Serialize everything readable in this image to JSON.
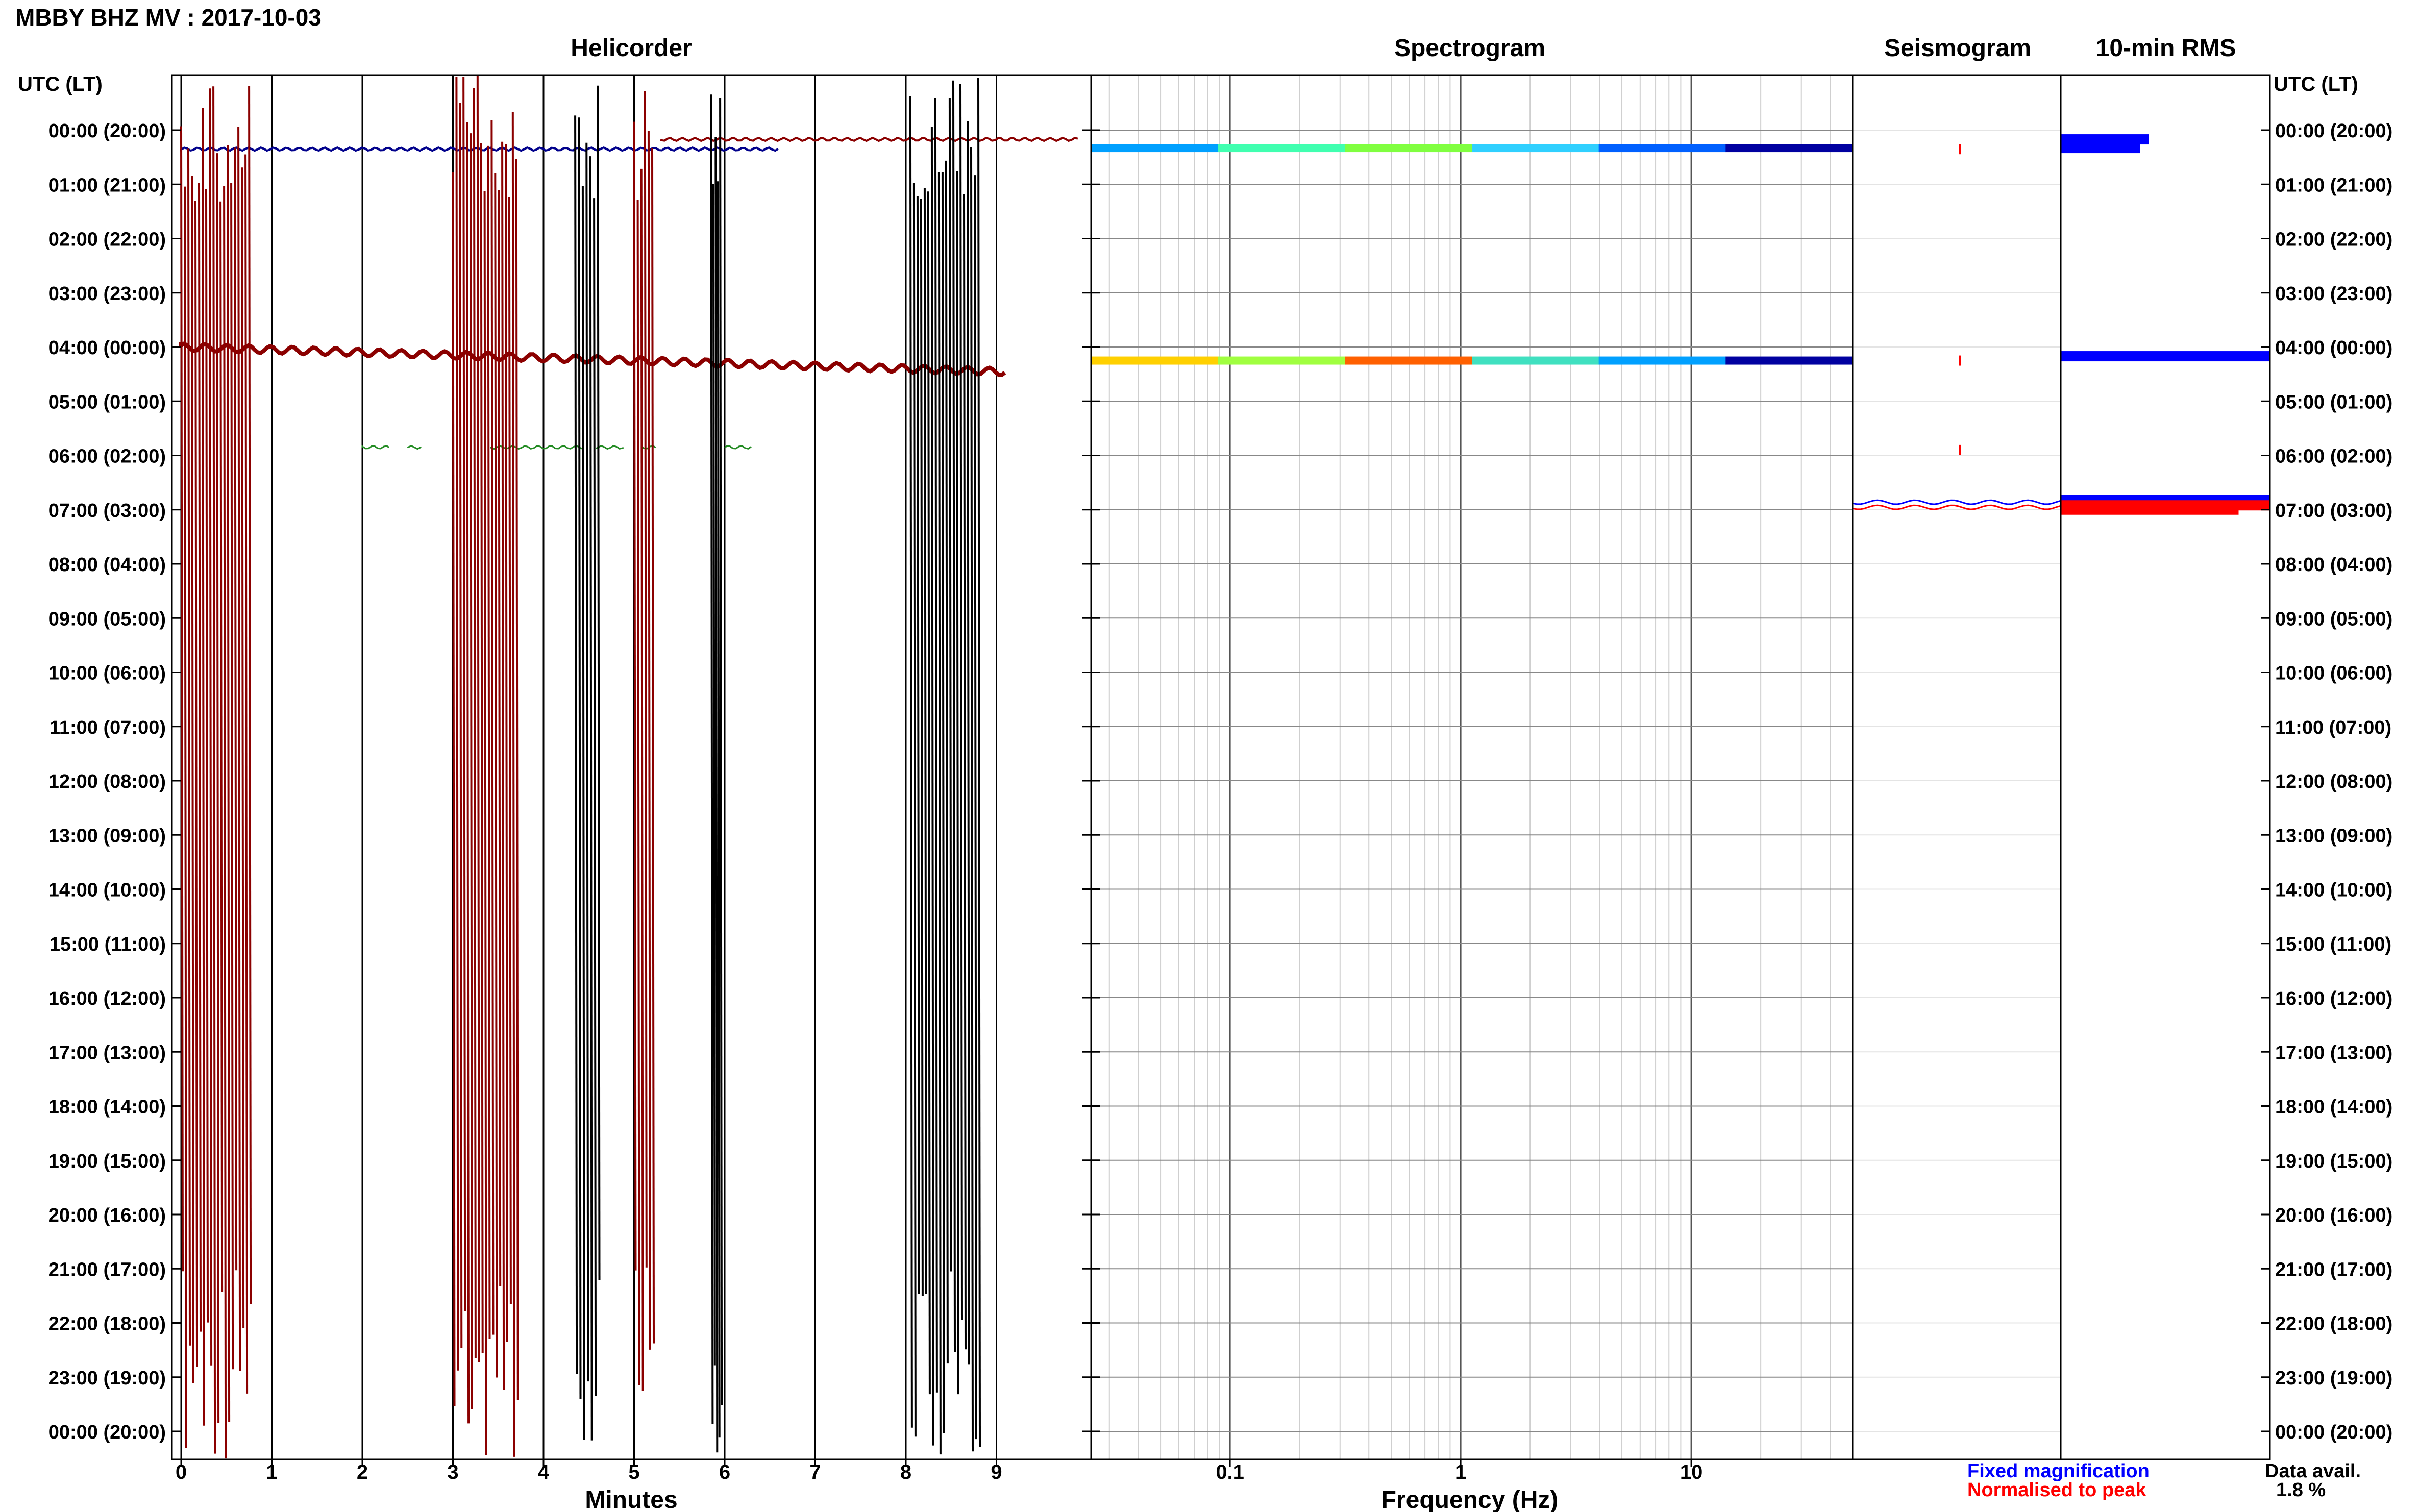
{
  "header": {
    "title": "MBBY BHZ MV : 2017-10-03"
  },
  "panels": {
    "helicorder": {
      "title": "Helicorder",
      "xlabel": "Minutes"
    },
    "spectrogram": {
      "title": "Spectrogram",
      "xlabel": "Frequency (Hz)"
    },
    "seismogram": {
      "title": "Seismogram"
    },
    "rms": {
      "title": "10-min RMS"
    }
  },
  "axis": {
    "left_label": "UTC (LT)",
    "right_label": "UTC (LT)",
    "hour_labels": [
      "00:00 (20:00)",
      "01:00 (21:00)",
      "02:00 (22:00)",
      "03:00 (23:00)",
      "04:00 (00:00)",
      "05:00 (01:00)",
      "06:00 (02:00)",
      "07:00 (03:00)",
      "08:00 (04:00)",
      "09:00 (05:00)",
      "10:00 (06:00)",
      "11:00 (07:00)",
      "12:00 (08:00)",
      "13:00 (09:00)",
      "14:00 (10:00)",
      "15:00 (11:00)",
      "16:00 (12:00)",
      "17:00 (13:00)",
      "18:00 (14:00)",
      "19:00 (15:00)",
      "20:00 (16:00)",
      "21:00 (17:00)",
      "22:00 (18:00)",
      "23:00 (19:00)",
      "00:00 (20:00)"
    ],
    "minute_ticks": [
      "0",
      "1",
      "2",
      "3",
      "4",
      "5",
      "6",
      "7",
      "8",
      "9"
    ],
    "freq_ticks": [
      "0.1",
      "1",
      "10"
    ]
  },
  "legend": {
    "fixed": "Fixed magnification",
    "normalised": "Normalised to peak",
    "fixed_color": "#0000ff",
    "normalised_color": "#ff0000"
  },
  "availability": {
    "label": "Data avail.",
    "value": "1.8 %"
  },
  "chart_data": [
    {
      "type": "line",
      "name": "helicorder",
      "title": "Helicorder",
      "xlabel": "Minutes",
      "xlim": [
        0,
        10
      ],
      "x_ticks": [
        0,
        1,
        2,
        3,
        4,
        5,
        6,
        7,
        8,
        9
      ],
      "ylim_hours": [
        0,
        24
      ],
      "traces": [
        {
          "hour": 0.35,
          "color": "#00008b",
          "x_start": 0.0,
          "x_end": 6.6
        },
        {
          "hour": 0.17,
          "color": "#8b0000",
          "x_start": 5.3,
          "x_end": 9.9
        },
        {
          "hour": 4.0,
          "color": "#8b0000",
          "x_start": 0.0,
          "x_end": 9.1
        },
        {
          "hour": 5.85,
          "color": "#228b22",
          "x_start": 2.0,
          "x_end": 6.3
        }
      ],
      "spikes": [
        {
          "color": "#8b0000",
          "x_range": [
            0.0,
            0.75
          ],
          "hours": [
            0,
            24
          ]
        },
        {
          "color": "#8b0000",
          "x_range": [
            3.0,
            3.7
          ],
          "hours": [
            0,
            24
          ]
        },
        {
          "color": "#8b0000",
          "x_range": [
            5.0,
            5.2
          ],
          "hours": [
            0,
            24
          ]
        },
        {
          "color": "#000000",
          "x_range": [
            4.35,
            4.6
          ],
          "hours": [
            0,
            24
          ]
        },
        {
          "color": "#000000",
          "x_range": [
            5.85,
            5.95
          ],
          "hours": [
            0,
            24
          ]
        },
        {
          "color": "#000000",
          "x_range": [
            8.05,
            8.8
          ],
          "hours": [
            0,
            24
          ]
        }
      ]
    },
    {
      "type": "heatmap",
      "name": "spectrogram",
      "title": "Spectrogram",
      "xlabel": "Frequency (Hz)",
      "xscale": "log",
      "xlim": [
        0.025,
        50
      ],
      "x_ticks": [
        0.1,
        1,
        10
      ],
      "bands": [
        {
          "hour": 0.33,
          "colors": [
            "#00a0ff",
            "#40ffb0",
            "#80ff40",
            "#30d0ff",
            "#0060ff",
            "#0000a0"
          ]
        },
        {
          "hour": 4.25,
          "colors": [
            "#ffd000",
            "#a0ff40",
            "#ff6000",
            "#40e0c0",
            "#00a0ff",
            "#0000a0"
          ]
        }
      ]
    },
    {
      "type": "line",
      "name": "seismogram",
      "title": "Seismogram",
      "segments": [
        {
          "hour": 0.35,
          "color": "#ff0000"
        },
        {
          "hour": 4.25,
          "color": "#ff0000"
        },
        {
          "hour": 5.9,
          "color": "#ff0000"
        },
        {
          "hour": 6.9,
          "color": "#0000ff"
        },
        {
          "hour": 6.9,
          "color": "#ff0000"
        }
      ]
    },
    {
      "type": "bar",
      "name": "rms",
      "title": "10-min RMS",
      "orientation": "horizontal",
      "xlim": [
        0,
        1
      ],
      "series": [
        {
          "color": "#0000ff",
          "bars": [
            {
              "hour": 0.17,
              "value": 0.42
            },
            {
              "hour": 0.33,
              "value": 0.38
            },
            {
              "hour": 4.17,
              "value": 1.0
            },
            {
              "hour": 6.83,
              "value": 1.0
            }
          ]
        },
        {
          "color": "#ff0000",
          "bars": [
            {
              "hour": 6.92,
              "value": 1.0
            },
            {
              "hour": 7.0,
              "value": 0.85
            }
          ]
        }
      ]
    }
  ]
}
